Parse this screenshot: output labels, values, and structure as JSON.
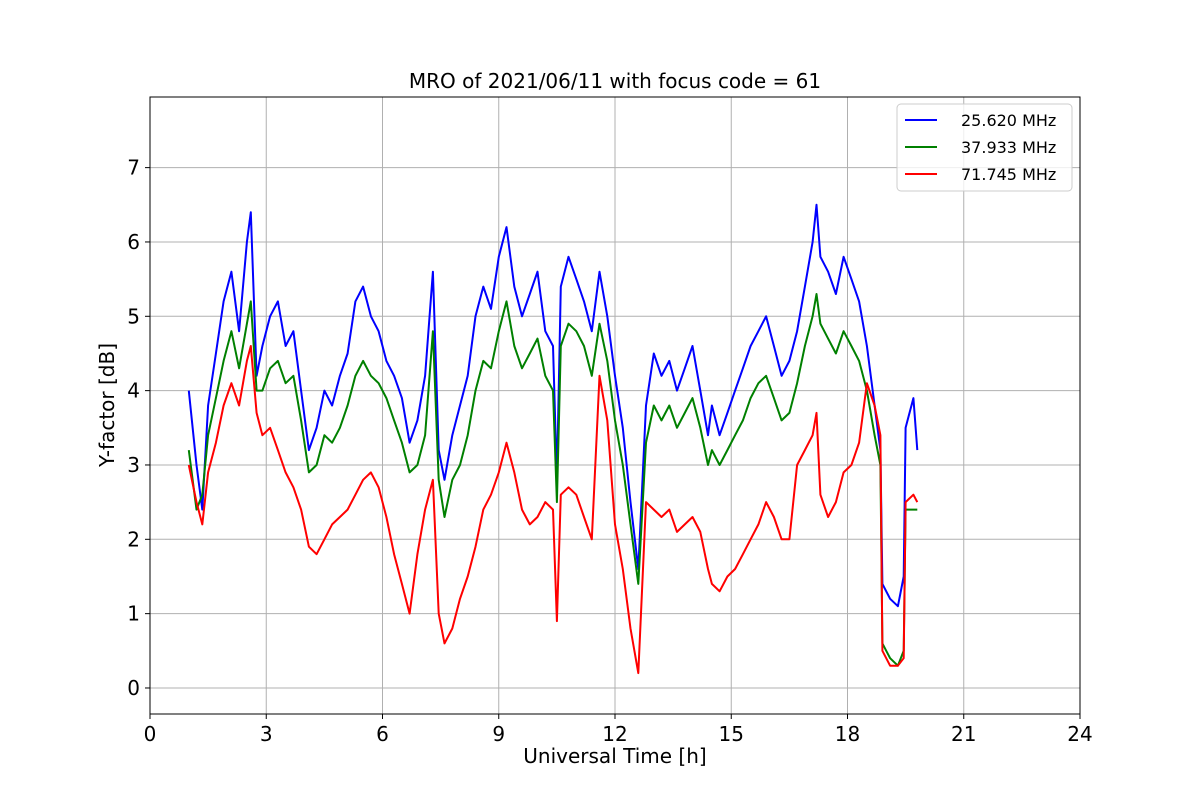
{
  "chart_data": {
    "type": "line",
    "title": "MRO of 2021/06/11 with focus code = 61",
    "xlabel": "Universal Time [h]",
    "ylabel": "Y-factor [dB]",
    "xlim": [
      0,
      24
    ],
    "ylim": [
      -0.35,
      7.95
    ],
    "xticks": [
      0,
      3,
      6,
      9,
      12,
      15,
      18,
      21,
      24
    ],
    "yticks": [
      0,
      1,
      2,
      3,
      4,
      5,
      6,
      7
    ],
    "grid": true,
    "legend_position": "top-right",
    "series": [
      {
        "name": "25.620 MHz",
        "color": "#0000ff",
        "x": [
          1.0,
          1.2,
          1.35,
          1.5,
          1.7,
          1.9,
          2.1,
          2.3,
          2.5,
          2.6,
          2.75,
          2.9,
          3.1,
          3.3,
          3.5,
          3.7,
          3.9,
          4.1,
          4.3,
          4.5,
          4.7,
          4.9,
          5.1,
          5.3,
          5.5,
          5.7,
          5.9,
          6.1,
          6.3,
          6.5,
          6.7,
          6.9,
          7.1,
          7.3,
          7.45,
          7.6,
          7.8,
          8.0,
          8.2,
          8.4,
          8.6,
          8.8,
          9.0,
          9.2,
          9.4,
          9.6,
          9.8,
          10.0,
          10.2,
          10.4,
          10.5,
          10.6,
          10.8,
          11.0,
          11.2,
          11.4,
          11.6,
          11.8,
          12.0,
          12.2,
          12.4,
          12.6,
          12.8,
          13.0,
          13.2,
          13.4,
          13.6,
          13.8,
          14.0,
          14.2,
          14.4,
          14.5,
          14.7,
          14.9,
          15.1,
          15.3,
          15.5,
          15.7,
          15.9,
          16.1,
          16.3,
          16.5,
          16.7,
          16.9,
          17.1,
          17.2,
          17.3,
          17.5,
          17.7,
          17.9,
          18.1,
          18.3,
          18.5,
          18.7,
          18.85,
          18.9,
          19.1,
          19.3,
          19.45,
          19.5,
          19.7,
          19.8
        ],
        "y": [
          4.0,
          3.0,
          2.4,
          3.8,
          4.5,
          5.2,
          5.6,
          4.8,
          6.0,
          6.4,
          4.2,
          4.6,
          5.0,
          5.2,
          4.6,
          4.8,
          4.0,
          3.2,
          3.5,
          4.0,
          3.8,
          4.2,
          4.5,
          5.2,
          5.4,
          5.0,
          4.8,
          4.4,
          4.2,
          3.9,
          3.3,
          3.6,
          4.2,
          5.6,
          3.2,
          2.8,
          3.4,
          3.8,
          4.2,
          5.0,
          5.4,
          5.1,
          5.8,
          6.2,
          5.4,
          5.0,
          5.3,
          5.6,
          4.8,
          4.6,
          2.8,
          5.4,
          5.8,
          5.5,
          5.2,
          4.8,
          5.6,
          5.0,
          4.2,
          3.5,
          2.5,
          1.6,
          3.8,
          4.5,
          4.2,
          4.4,
          4.0,
          4.3,
          4.6,
          4.0,
          3.4,
          3.8,
          3.4,
          3.7,
          4.0,
          4.3,
          4.6,
          4.8,
          5.0,
          4.6,
          4.2,
          4.4,
          4.8,
          5.4,
          6.0,
          6.5,
          5.8,
          5.6,
          5.3,
          5.8,
          5.5,
          5.2,
          4.6,
          3.8,
          3.2,
          1.4,
          1.2,
          1.1,
          1.5,
          3.5,
          3.9,
          3.2
        ]
      },
      {
        "name": "37.933 MHz",
        "color": "#008000",
        "x": [
          1.0,
          1.2,
          1.35,
          1.5,
          1.7,
          1.9,
          2.1,
          2.3,
          2.5,
          2.6,
          2.75,
          2.9,
          3.1,
          3.3,
          3.5,
          3.7,
          3.9,
          4.1,
          4.3,
          4.5,
          4.7,
          4.9,
          5.1,
          5.3,
          5.5,
          5.7,
          5.9,
          6.1,
          6.3,
          6.5,
          6.7,
          6.9,
          7.1,
          7.3,
          7.45,
          7.6,
          7.8,
          8.0,
          8.2,
          8.4,
          8.6,
          8.8,
          9.0,
          9.2,
          9.4,
          9.6,
          9.8,
          10.0,
          10.2,
          10.4,
          10.5,
          10.6,
          10.8,
          11.0,
          11.2,
          11.4,
          11.6,
          11.8,
          12.0,
          12.2,
          12.4,
          12.6,
          12.8,
          13.0,
          13.2,
          13.4,
          13.6,
          13.8,
          14.0,
          14.2,
          14.4,
          14.5,
          14.7,
          14.9,
          15.1,
          15.3,
          15.5,
          15.7,
          15.9,
          16.1,
          16.3,
          16.5,
          16.7,
          16.9,
          17.1,
          17.2,
          17.3,
          17.5,
          17.7,
          17.9,
          18.1,
          18.3,
          18.5,
          18.7,
          18.85,
          18.9,
          19.1,
          19.3,
          19.45,
          19.5,
          19.7,
          19.8
        ],
        "y": [
          3.2,
          2.4,
          2.6,
          3.4,
          3.9,
          4.4,
          4.8,
          4.3,
          4.9,
          5.2,
          4.0,
          4.0,
          4.3,
          4.4,
          4.1,
          4.2,
          3.6,
          2.9,
          3.0,
          3.4,
          3.3,
          3.5,
          3.8,
          4.2,
          4.4,
          4.2,
          4.1,
          3.9,
          3.6,
          3.3,
          2.9,
          3.0,
          3.4,
          4.8,
          2.8,
          2.3,
          2.8,
          3.0,
          3.4,
          4.0,
          4.4,
          4.3,
          4.8,
          5.2,
          4.6,
          4.3,
          4.5,
          4.7,
          4.2,
          4.0,
          2.5,
          4.6,
          4.9,
          4.8,
          4.6,
          4.2,
          4.9,
          4.4,
          3.6,
          3.0,
          2.2,
          1.4,
          3.3,
          3.8,
          3.6,
          3.8,
          3.5,
          3.7,
          3.9,
          3.5,
          3.0,
          3.2,
          3.0,
          3.2,
          3.4,
          3.6,
          3.9,
          4.1,
          4.2,
          3.9,
          3.6,
          3.7,
          4.1,
          4.6,
          5.0,
          5.3,
          4.9,
          4.7,
          4.5,
          4.8,
          4.6,
          4.4,
          4.0,
          3.4,
          3.0,
          0.6,
          0.4,
          0.3,
          0.5,
          2.4,
          2.4,
          2.4
        ]
      },
      {
        "name": "71.745 MHz",
        "color": "#ff0000",
        "x": [
          1.0,
          1.2,
          1.35,
          1.5,
          1.7,
          1.9,
          2.1,
          2.3,
          2.5,
          2.6,
          2.75,
          2.9,
          3.1,
          3.3,
          3.5,
          3.7,
          3.9,
          4.1,
          4.3,
          4.5,
          4.7,
          4.9,
          5.1,
          5.3,
          5.5,
          5.7,
          5.9,
          6.1,
          6.3,
          6.5,
          6.7,
          6.9,
          7.1,
          7.3,
          7.45,
          7.6,
          7.8,
          8.0,
          8.2,
          8.4,
          8.6,
          8.8,
          9.0,
          9.2,
          9.4,
          9.6,
          9.8,
          10.0,
          10.2,
          10.4,
          10.5,
          10.6,
          10.8,
          11.0,
          11.2,
          11.4,
          11.6,
          11.8,
          12.0,
          12.2,
          12.4,
          12.6,
          12.8,
          13.0,
          13.2,
          13.4,
          13.6,
          13.8,
          14.0,
          14.2,
          14.4,
          14.5,
          14.7,
          14.9,
          15.1,
          15.3,
          15.5,
          15.7,
          15.9,
          16.1,
          16.3,
          16.5,
          16.7,
          16.9,
          17.1,
          17.2,
          17.3,
          17.5,
          17.7,
          17.9,
          18.1,
          18.3,
          18.5,
          18.7,
          18.85,
          18.9,
          19.1,
          19.3,
          19.45,
          19.5,
          19.7,
          19.8
        ],
        "y": [
          3.0,
          2.5,
          2.2,
          2.9,
          3.3,
          3.8,
          4.1,
          3.8,
          4.4,
          4.6,
          3.7,
          3.4,
          3.5,
          3.2,
          2.9,
          2.7,
          2.4,
          1.9,
          1.8,
          2.0,
          2.2,
          2.3,
          2.4,
          2.6,
          2.8,
          2.9,
          2.7,
          2.3,
          1.8,
          1.4,
          1.0,
          1.8,
          2.4,
          2.8,
          1.0,
          0.6,
          0.8,
          1.2,
          1.5,
          1.9,
          2.4,
          2.6,
          2.9,
          3.3,
          2.9,
          2.4,
          2.2,
          2.3,
          2.5,
          2.4,
          0.9,
          2.6,
          2.7,
          2.6,
          2.3,
          2.0,
          4.2,
          3.6,
          2.2,
          1.6,
          0.8,
          0.2,
          2.5,
          2.4,
          2.3,
          2.4,
          2.1,
          2.2,
          2.3,
          2.1,
          1.6,
          1.4,
          1.3,
          1.5,
          1.6,
          1.8,
          2.0,
          2.2,
          2.5,
          2.3,
          2.0,
          2.0,
          3.0,
          3.2,
          3.4,
          3.7,
          2.6,
          2.3,
          2.5,
          2.9,
          3.0,
          3.3,
          4.1,
          3.8,
          3.4,
          0.5,
          0.3,
          0.3,
          0.4,
          2.5,
          2.6,
          2.5
        ]
      }
    ]
  }
}
